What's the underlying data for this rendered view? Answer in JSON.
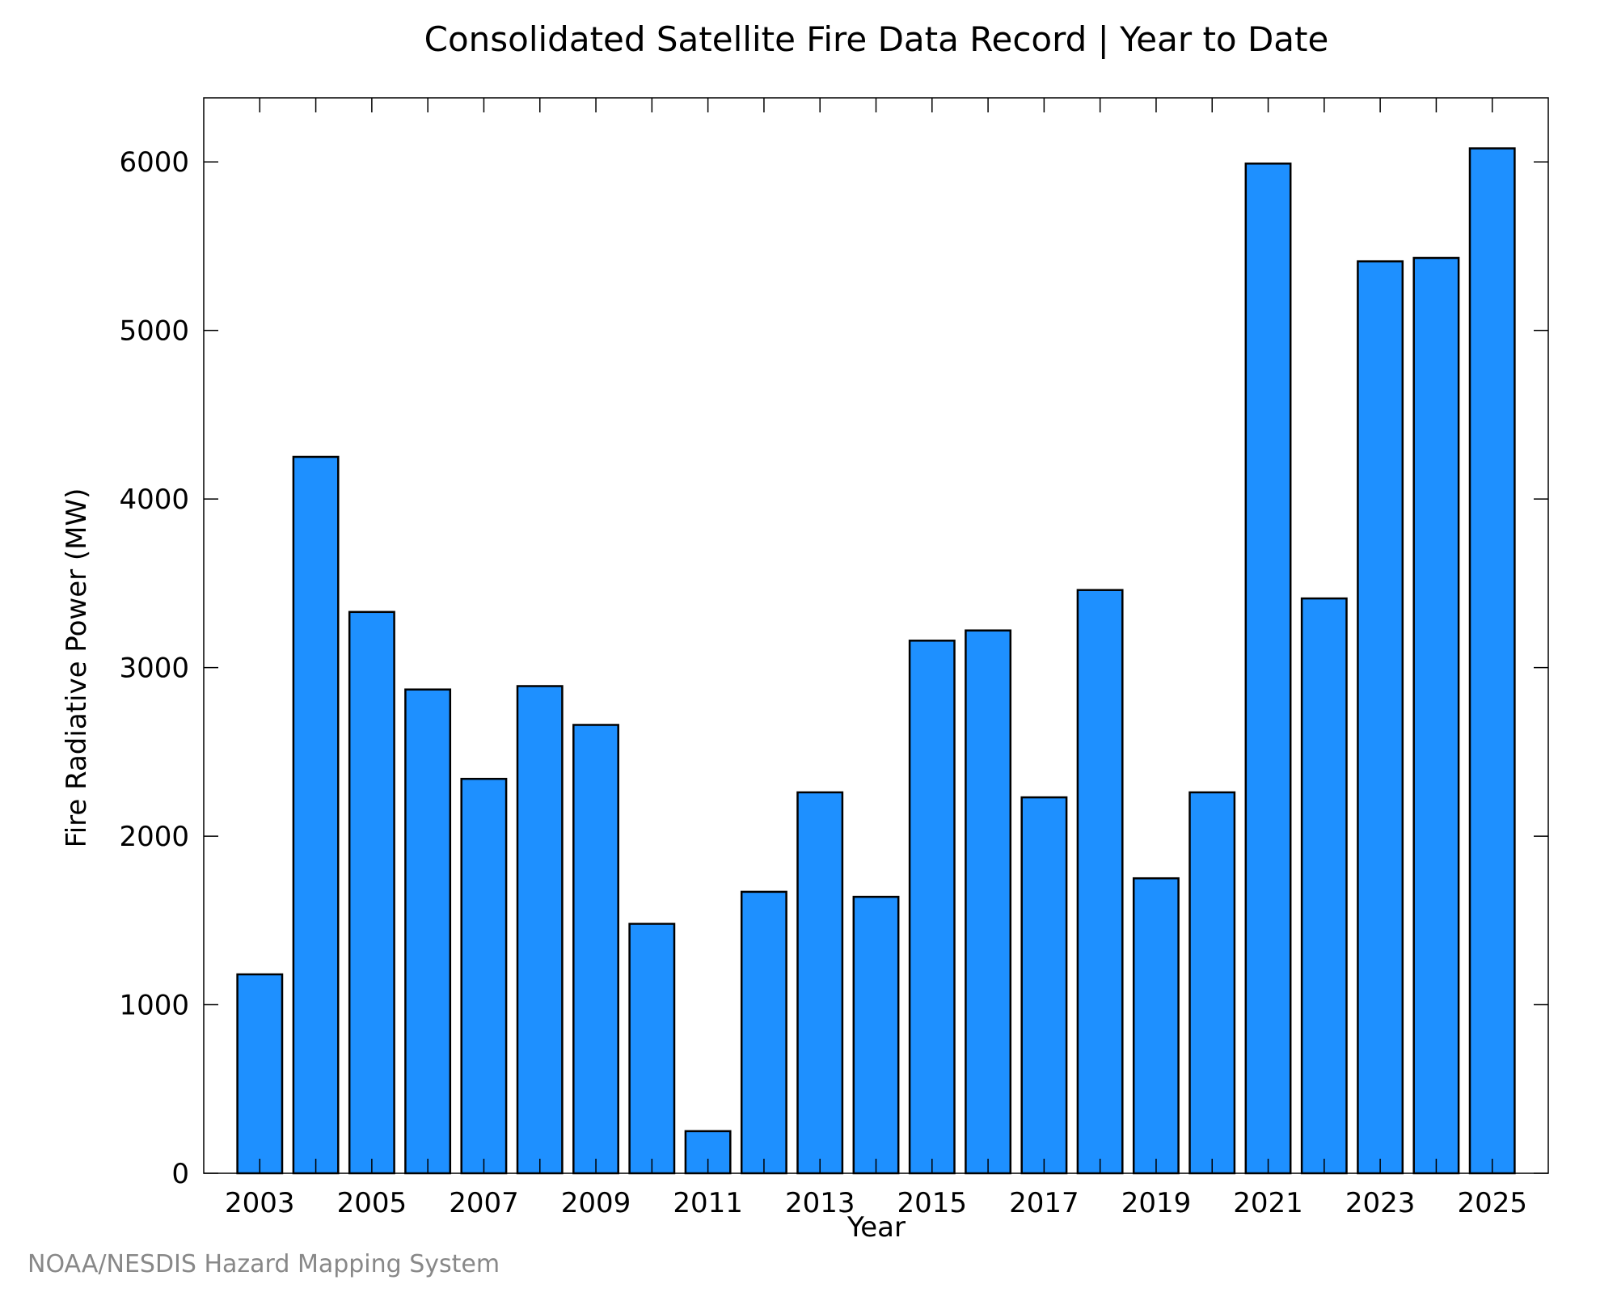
{
  "chart_data": {
    "type": "bar",
    "title": "Consolidated Satellite Fire Data Record | Year to Date",
    "xlabel": "Year",
    "ylabel": "Fire Radiative Power (MW)",
    "categories": [
      "2003",
      "2004",
      "2005",
      "2006",
      "2007",
      "2008",
      "2009",
      "2010",
      "2011",
      "2012",
      "2013",
      "2014",
      "2015",
      "2016",
      "2017",
      "2018",
      "2019",
      "2020",
      "2021",
      "2022",
      "2023",
      "2024",
      "2025"
    ],
    "values": [
      1180,
      4250,
      3330,
      2870,
      2340,
      2890,
      2660,
      1480,
      250,
      1670,
      2260,
      1640,
      3160,
      3220,
      2230,
      3460,
      1750,
      2260,
      5990,
      3410,
      5410,
      5430,
      6080
    ],
    "x_tick_labels": [
      "2003",
      "2005",
      "2007",
      "2009",
      "2011",
      "2013",
      "2015",
      "2017",
      "2019",
      "2021",
      "2023",
      "2025"
    ],
    "y_ticks": [
      0,
      1000,
      2000,
      3000,
      4000,
      5000,
      6000
    ],
    "ylim": [
      0,
      6380
    ],
    "bar_color": "#1e90ff",
    "bar_edge_color": "#000000",
    "grid": false,
    "legend": "none"
  },
  "footer": {
    "credit": "NOAA/NESDIS Hazard Mapping System",
    "credit_color": "#888888"
  }
}
